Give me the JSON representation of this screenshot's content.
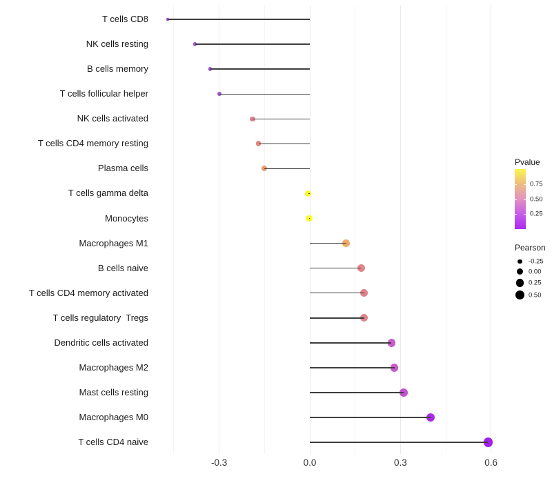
{
  "figure": {
    "background": "#ffffff"
  },
  "chart_data": {
    "type": "scatter",
    "subtype": "lollipop",
    "orientation": "horizontal",
    "title": "",
    "xlabel": "",
    "ylabel": "",
    "categories": [
      "T cells CD8",
      "NK cells resting",
      "B cells memory",
      "T cells follicular helper",
      "NK cells activated",
      "T cells CD4 memory resting",
      "Plasma cells",
      "T cells gamma delta",
      "Monocytes",
      "Macrophages M1",
      "B cells naive",
      "T cells CD4 memory activated",
      "T cells regulatory  Tregs",
      "Dendritic cells activated",
      "Macrophages M2",
      "Mast cells resting",
      "Macrophages M0",
      "T cells CD4 naive"
    ],
    "series": [
      {
        "name": "Pearson",
        "values": [
          -0.47,
          -0.38,
          -0.33,
          -0.3,
          -0.19,
          -0.17,
          -0.15,
          -0.005,
          -0.002,
          0.12,
          0.17,
          0.18,
          0.18,
          0.27,
          0.28,
          0.31,
          0.4,
          0.59
        ]
      }
    ],
    "point_colors": [
      "#a13cd6",
      "#a852d0",
      "#a751ce",
      "#a34fd1",
      "#dd8090",
      "#e1887f",
      "#e99c6f",
      "#fafa28",
      "#fbfd2e",
      "#ecab67",
      "#e18586",
      "#e0838a",
      "#e0848b",
      "#c85ccb",
      "#c75bce",
      "#c44fd3",
      "#a82be2",
      "#a21fe8"
    ],
    "stem_color": "#3e3e3e",
    "baseline": 0,
    "xlim": [
      -0.52,
      0.64
    ],
    "x_axis": {
      "tick_values": [
        -0.3,
        0.0,
        0.3,
        0.6
      ],
      "tick_labels": [
        "-0.3",
        "0.0",
        "0.3",
        "0.6"
      ],
      "minor_tick_values": [
        -0.45,
        -0.15,
        0.15,
        0.45
      ]
    },
    "grid": {
      "vertical": true,
      "horizontal": false,
      "major_color": "#eaeaea",
      "minor_color": "#f4f4f4"
    },
    "legend_position": "right"
  },
  "legend": {
    "pvalue": {
      "title": "Pvalue",
      "range": [
        0,
        1
      ],
      "gradient_top_to_bottom": [
        "#faf44e",
        "#eebc80",
        "#e392c0",
        "#c55de9",
        "#ac29f2"
      ],
      "tick_values": [
        0.75,
        0.5,
        0.25
      ],
      "tick_labels": [
        "0.75",
        "0.50",
        "0.25"
      ]
    },
    "pearson": {
      "title": "Pearson",
      "dot_color": "#000000",
      "item_values": [
        -0.25,
        0.0,
        0.25,
        0.5
      ],
      "item_labels": [
        "-0.25",
        "0.00",
        "0.25",
        "0.50"
      ]
    }
  }
}
